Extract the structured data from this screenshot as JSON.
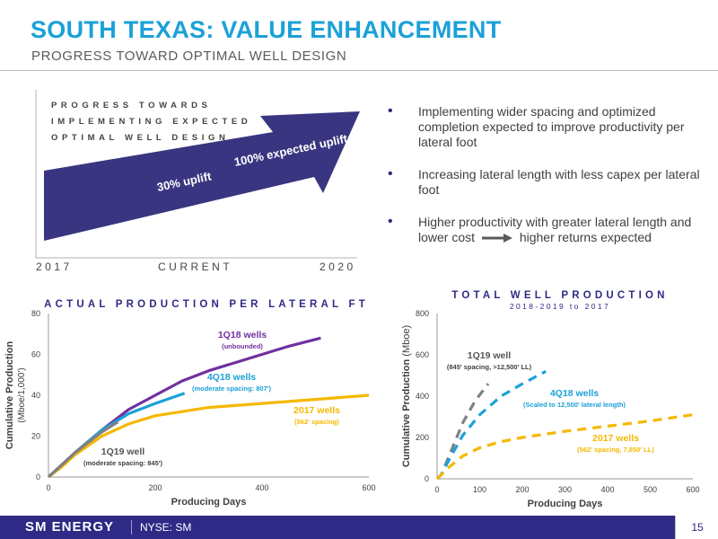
{
  "header": {
    "title": "SOUTH TEXAS: VALUE ENHANCEMENT",
    "subtitle": "PROGRESS TOWARD OPTIMAL WELL DESIGN"
  },
  "progress_panel": {
    "label_lines": [
      "PROGRESS TOWARDS",
      "IMPLEMENTING EXPECTED",
      "OPTIMAL WELL DESIGN"
    ],
    "axis_start": "2017",
    "axis_mid": "CURRENT",
    "axis_end": "2020",
    "uplift_current": "30% uplift",
    "uplift_expected": "100% expected uplift",
    "arrow_color": "#3a3580"
  },
  "bullets": [
    "Implementing wider spacing and optimized completion expected to improve productivity per lateral foot",
    "Increasing lateral length with less capex per lateral foot",
    "Higher productivity with greater lateral length and lower cost"
  ],
  "bullet_tail": "higher returns expected",
  "footer": {
    "logo": "SM ENERGY",
    "ticker": "NYSE: SM",
    "page": "15"
  },
  "chart_data": [
    {
      "type": "line",
      "title": "ACTUAL PRODUCTION PER LATERAL FT",
      "xlabel": "Producing Days",
      "ylabel": "Cumulative Production",
      "ylabel_unit": "(Mboe/1,000')",
      "xlim": [
        0,
        600
      ],
      "ylim": [
        0,
        80
      ],
      "xticks": [
        0,
        200,
        400,
        600
      ],
      "yticks": [
        0,
        20,
        40,
        60,
        80
      ],
      "grid": false,
      "series": [
        {
          "name": "1Q18 wells",
          "note": "(unbounded)",
          "color": "#7030a0",
          "dash": false,
          "x": [
            0,
            25,
            50,
            100,
            150,
            200,
            250,
            300,
            350,
            400,
            450,
            510
          ],
          "y": [
            0,
            6,
            12,
            23,
            33,
            40,
            47,
            52,
            56,
            60,
            64,
            68
          ]
        },
        {
          "name": "4Q18 wells",
          "note": "(moderate spacing: 807')",
          "color": "#1ba1d8",
          "dash": false,
          "x": [
            0,
            25,
            50,
            100,
            150,
            200,
            255
          ],
          "y": [
            0,
            6,
            12,
            23,
            31,
            36,
            41
          ]
        },
        {
          "name": "2017 wells",
          "note": "(562' spacing)",
          "color": "#f5b800",
          "dash": false,
          "x": [
            0,
            25,
            50,
            100,
            150,
            200,
            300,
            400,
            500,
            600
          ],
          "y": [
            0,
            5,
            11,
            20,
            26,
            30,
            34,
            36,
            38,
            40
          ]
        },
        {
          "name": "1Q19 well",
          "note": "(moderate spacing: 845')",
          "color": "#808080",
          "dash": false,
          "x": [
            0,
            25,
            50,
            100,
            130
          ],
          "y": [
            0,
            6,
            12,
            22,
            27
          ]
        }
      ]
    },
    {
      "type": "line",
      "title": "TOTAL WELL PRODUCTION",
      "subtitle": "2018-2019 to 2017",
      "xlabel": "Producing Days",
      "ylabel": "Cumulative Production",
      "ylabel_unit": "(Mboe)",
      "xlim": [
        0,
        600
      ],
      "ylim": [
        0,
        800
      ],
      "xticks": [
        0,
        100,
        200,
        300,
        400,
        500,
        600
      ],
      "yticks": [
        0,
        200,
        400,
        600,
        800
      ],
      "grid": false,
      "series": [
        {
          "name": "1Q19 well",
          "note": "(845' spacing, >12,500' LL)",
          "color": "#808080",
          "dash": true,
          "x": [
            0,
            10,
            30,
            60,
            90,
            120
          ],
          "y": [
            0,
            20,
            120,
            270,
            380,
            460
          ]
        },
        {
          "name": "4Q18 wells",
          "note": "(Scaled to 12,500' lateral length)",
          "color": "#1ba1d8",
          "dash": true,
          "x": [
            0,
            10,
            30,
            60,
            100,
            150,
            200,
            255
          ],
          "y": [
            0,
            20,
            100,
            210,
            310,
            400,
            460,
            520
          ]
        },
        {
          "name": "2017 wells",
          "note": "(562' spacing, 7,850' LL)",
          "color": "#f5b800",
          "dash": true,
          "x": [
            0,
            10,
            30,
            60,
            100,
            150,
            200,
            300,
            400,
            500,
            600
          ],
          "y": [
            0,
            20,
            60,
            110,
            150,
            180,
            200,
            230,
            255,
            280,
            310
          ]
        }
      ]
    }
  ]
}
